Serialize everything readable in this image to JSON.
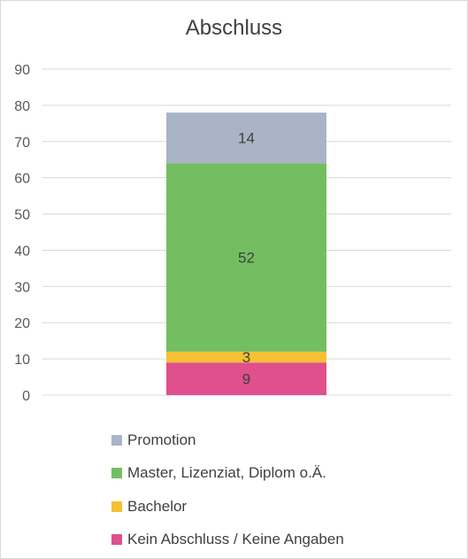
{
  "chart_data": {
    "type": "bar",
    "stacked": true,
    "title": "Abschluss",
    "categories": [
      ""
    ],
    "ylim": [
      0,
      90
    ],
    "yticks": [
      0,
      10,
      20,
      30,
      40,
      50,
      60,
      70,
      80,
      90
    ],
    "grid": true,
    "legend_position": "bottom",
    "series": [
      {
        "name": "Kein Abschluss / Keine Angaben",
        "values": [
          9
        ],
        "color": "#e0508c"
      },
      {
        "name": "Bachelor",
        "values": [
          3
        ],
        "color": "#f5c033"
      },
      {
        "name": "Master, Lizenziat, Diplom o.Ä.",
        "values": [
          52
        ],
        "color": "#74be62"
      },
      {
        "name": "Promotion",
        "values": [
          14
        ],
        "color": "#a9b4c6"
      }
    ],
    "legend_order": [
      "Promotion",
      "Master, Lizenziat, Diplom o.Ä.",
      "Bachelor",
      "Kein Abschluss / Keine Angaben"
    ]
  }
}
